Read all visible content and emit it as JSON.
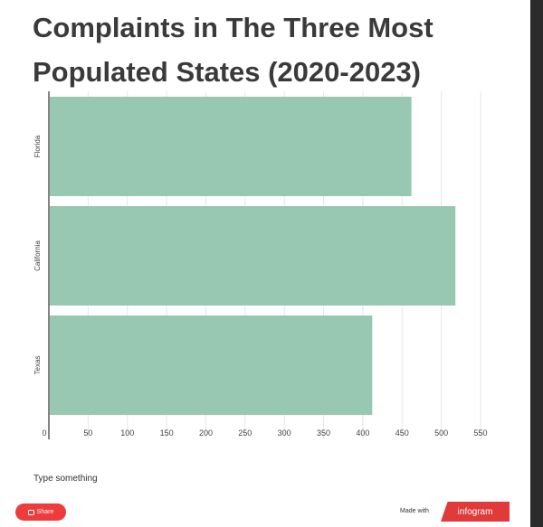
{
  "title": "Complaints in The Three Most Populated States (2020-2023)",
  "footnote": "Type something",
  "share_label": "Share",
  "made_with_label": "Made with",
  "brand_label": "infogram",
  "colors": {
    "bar": "#99c8b2",
    "share_button": "#ee3b3b",
    "brand": "#e03a3a"
  },
  "icons": {
    "share": "share-icon"
  },
  "chart_data": {
    "type": "bar",
    "orientation": "horizontal",
    "categories": [
      "Florida",
      "California",
      "Texas"
    ],
    "values": [
      462,
      518,
      412
    ],
    "xlim": [
      0,
      550
    ],
    "ticks": [
      0,
      50,
      100,
      150,
      200,
      250,
      300,
      350,
      400,
      450,
      500,
      550
    ],
    "grid": true,
    "title": "Complaints in The Three Most Populated States (2020-2023)",
    "xlabel": "",
    "ylabel": ""
  }
}
